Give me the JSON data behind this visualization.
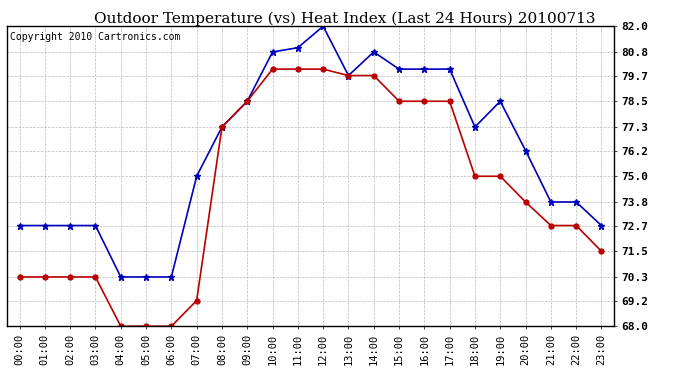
{
  "title": "Outdoor Temperature (vs) Heat Index (Last 24 Hours) 20100713",
  "copyright": "Copyright 2010 Cartronics.com",
  "hours": [
    "00:00",
    "01:00",
    "02:00",
    "03:00",
    "04:00",
    "05:00",
    "06:00",
    "07:00",
    "08:00",
    "09:00",
    "10:00",
    "11:00",
    "12:00",
    "13:00",
    "14:00",
    "15:00",
    "16:00",
    "17:00",
    "18:00",
    "19:00",
    "20:00",
    "21:00",
    "22:00",
    "23:00"
  ],
  "blue_temp": [
    72.7,
    72.7,
    72.7,
    72.7,
    70.3,
    70.3,
    70.3,
    75.0,
    77.3,
    78.5,
    80.8,
    81.0,
    82.0,
    79.7,
    80.8,
    80.0,
    80.0,
    80.0,
    77.3,
    78.5,
    76.2,
    73.8,
    73.8,
    72.7
  ],
  "red_heat": [
    70.3,
    70.3,
    70.3,
    70.3,
    68.0,
    68.0,
    68.0,
    69.2,
    77.3,
    78.5,
    80.0,
    80.0,
    80.0,
    79.7,
    79.7,
    78.5,
    78.5,
    78.5,
    75.0,
    75.0,
    73.8,
    72.7,
    72.7,
    71.5
  ],
  "ylim_min": 68.0,
  "ylim_max": 82.0,
  "yticks": [
    68.0,
    69.2,
    70.3,
    71.5,
    72.7,
    73.8,
    75.0,
    76.2,
    77.3,
    78.5,
    79.7,
    80.8,
    82.0
  ],
  "blue_color": "#0000bb",
  "red_color": "#bb0000",
  "bg_color": "#ffffff",
  "grid_color": "#bbbbbb",
  "title_fontsize": 11,
  "copyright_fontsize": 7,
  "tick_fontsize": 7.5
}
